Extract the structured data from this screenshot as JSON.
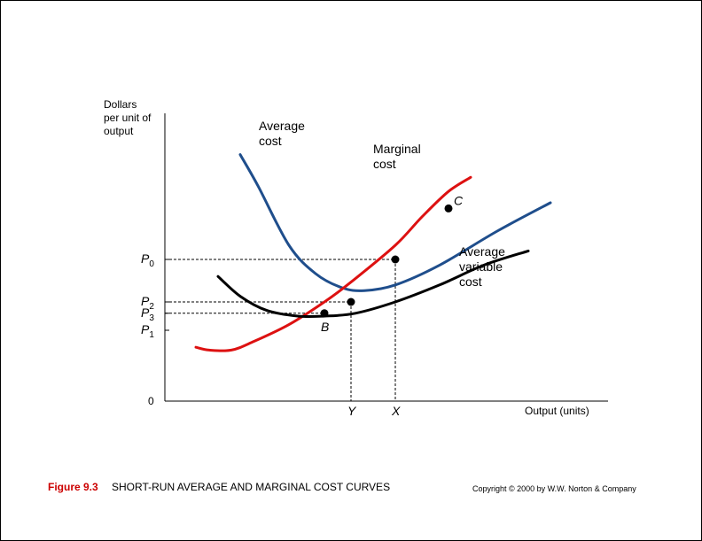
{
  "chart_data": {
    "type": "line",
    "y_axis_label_lines": [
      "Dollars",
      "per unit of",
      "output"
    ],
    "x_axis_label": "Output (units)",
    "origin_label": "0",
    "xlim": [
      0,
      100
    ],
    "ylim": [
      0,
      100
    ],
    "series": [
      {
        "name_lines": [
          "Average",
          "cost"
        ],
        "color": "#1f4e8c",
        "points": [
          [
            17,
            87
          ],
          [
            21,
            76
          ],
          [
            28,
            55
          ],
          [
            34,
            45
          ],
          [
            40,
            40
          ],
          [
            45,
            39
          ],
          [
            52,
            41
          ],
          [
            62,
            48
          ],
          [
            75,
            60
          ],
          [
            87,
            70
          ]
        ]
      },
      {
        "name_lines": [
          "Marginal",
          "cost"
        ],
        "color": "#dd1111",
        "points": [
          [
            7,
            19
          ],
          [
            10,
            18
          ],
          [
            15,
            18
          ],
          [
            20,
            21
          ],
          [
            28,
            27
          ],
          [
            36,
            35
          ],
          [
            42,
            42
          ],
          [
            52,
            55
          ],
          [
            58,
            65
          ],
          [
            64,
            74
          ],
          [
            69,
            79
          ]
        ]
      },
      {
        "name_lines": [
          "Average",
          "variable",
          "cost"
        ],
        "color": "#000000",
        "points": [
          [
            12,
            44
          ],
          [
            17,
            37
          ],
          [
            23,
            32
          ],
          [
            30,
            30
          ],
          [
            36,
            30
          ],
          [
            43,
            31
          ],
          [
            52,
            35
          ],
          [
            62,
            41
          ],
          [
            72,
            48
          ],
          [
            82,
            53
          ]
        ]
      }
    ],
    "price_levels": [
      {
        "label_main": "P",
        "label_sub": "0",
        "y": 50
      },
      {
        "label_main": "P",
        "label_sub": "2",
        "y": 35
      },
      {
        "label_main": "P",
        "label_sub": "3",
        "y": 31
      },
      {
        "label_main": "P",
        "label_sub": "1",
        "y": 25
      }
    ],
    "output_levels": [
      {
        "label": "Y",
        "x": 42
      },
      {
        "label": "X",
        "x": 52
      }
    ],
    "reference_lines": [
      {
        "from": [
          0,
          50
        ],
        "to": [
          52,
          50
        ],
        "drop_to_axis": true
      },
      {
        "from": [
          0,
          35
        ],
        "to": [
          42,
          35
        ],
        "drop_to_axis": true
      },
      {
        "from": [
          0,
          31
        ],
        "to": [
          36,
          31
        ],
        "drop_to_axis": false
      }
    ],
    "points": [
      {
        "label": "B",
        "x": 36,
        "y": 31,
        "label_pos": "below"
      },
      {
        "label": "",
        "x": 42,
        "y": 35,
        "label_pos": "none"
      },
      {
        "label": "",
        "x": 52,
        "y": 50,
        "label_pos": "none"
      },
      {
        "label": "C",
        "x": 64,
        "y": 68,
        "label_pos": "above-right"
      }
    ]
  },
  "caption": {
    "figure_label": "Figure 9.3",
    "title": "SHORT-RUN AVERAGE AND MARGINAL COST CURVES",
    "copyright": "Copyright © 2000 by W.W. Norton & Company"
  }
}
